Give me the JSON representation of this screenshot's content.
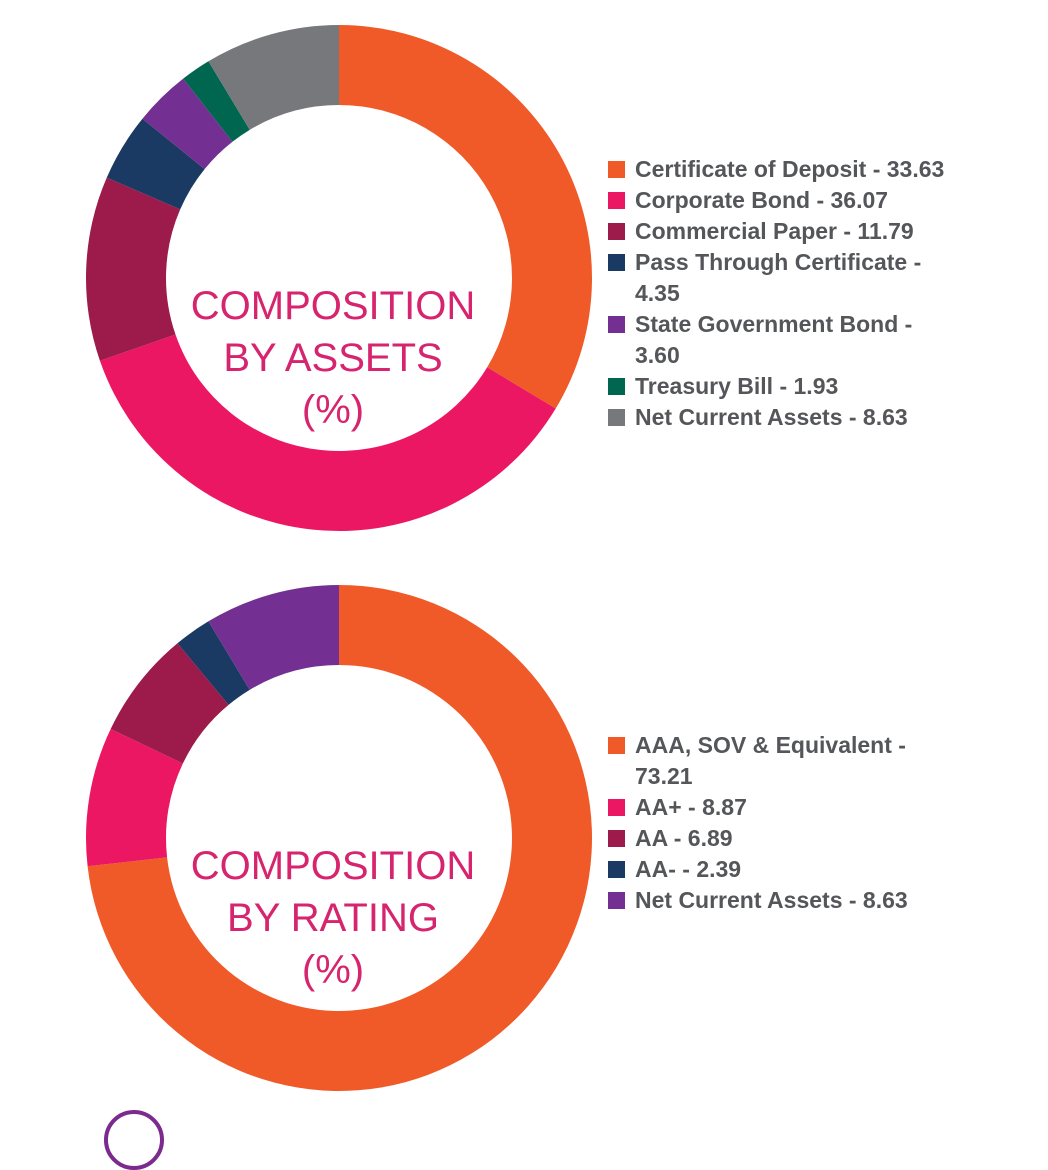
{
  "chart_data": [
    {
      "type": "pie",
      "title": "COMPOSITION BY ASSETS (%)",
      "title_lines": [
        "COMPOSITION",
        "BY ASSETS",
        "(%)"
      ],
      "categories": [
        "Certificate of Deposit",
        "Corporate Bond",
        "Commercial Paper",
        "Pass Through Certificate",
        "State Government Bond",
        "Treasury Bill",
        "Net Current Assets"
      ],
      "values": [
        33.63,
        36.07,
        11.79,
        4.35,
        3.6,
        1.93,
        8.63
      ],
      "legend_labels": [
        "Certificate of Deposit - 33.63",
        "Corporate Bond - 36.07",
        "Commercial Paper - 11.79",
        "Pass Through Certificate - 4.35",
        "State Government Bond - 3.60",
        "Treasury Bill - 1.93",
        "Net Current Assets - 8.63"
      ],
      "colors": [
        "#f05a28",
        "#ec1763",
        "#9c1b4b",
        "#1b3a63",
        "#733092",
        "#00664f",
        "#77787b"
      ],
      "legend_position": "right",
      "donut": true
    },
    {
      "type": "pie",
      "title": "COMPOSITION BY RATING (%)",
      "title_lines": [
        "COMPOSITION",
        "BY RATING",
        "(%)"
      ],
      "categories": [
        "AAA, SOV & Equivalent",
        "AA+",
        "AA",
        "AA-",
        "Net Current Assets"
      ],
      "values": [
        73.21,
        8.87,
        6.89,
        2.39,
        8.63
      ],
      "legend_labels": [
        "AAA, SOV & Equivalent - 73.21",
        "AA+ - 8.87",
        "AA - 6.89",
        "AA- - 2.39",
        "Net Current Assets - 8.63"
      ],
      "colors": [
        "#f05a28",
        "#ec1763",
        "#9c1b4b",
        "#1b3a63",
        "#733092"
      ],
      "legend_position": "right",
      "donut": true
    }
  ],
  "colors": {
    "title_text": "#d6246e",
    "legend_text": "#555659",
    "corner_mark": "#7b2a8e"
  }
}
